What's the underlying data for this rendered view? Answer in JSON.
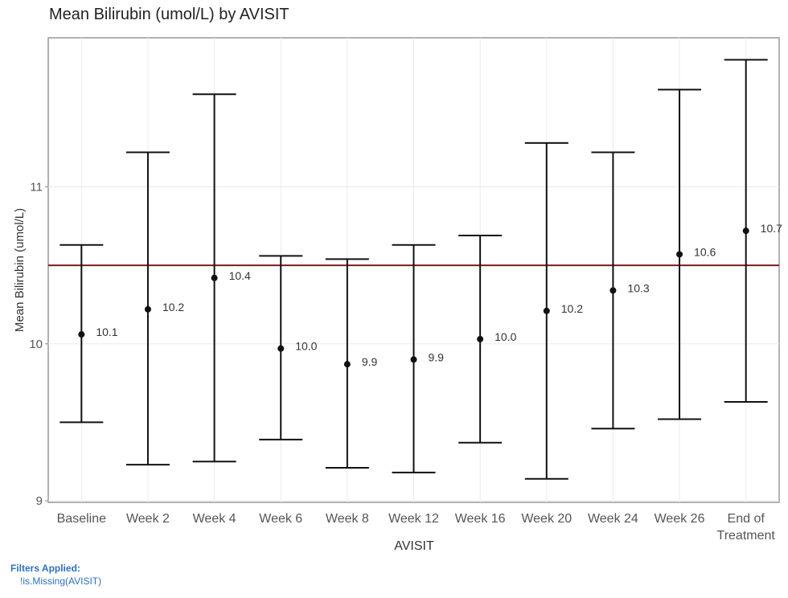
{
  "chart_data": {
    "type": "errorbar",
    "title": "Mean Bilirubin (umol/L) by AVISIT",
    "xlabel": "AVISIT",
    "ylabel": "Mean Bilirubin (umol/L)",
    "ylim": [
      8.99,
      11.95
    ],
    "yticks": [
      9,
      10,
      11
    ],
    "grid": true,
    "reference_line": {
      "y": 10.5,
      "color": "#7b1c1c"
    },
    "categories": [
      "Baseline",
      "Week 2",
      "Week 4",
      "Week 6",
      "Week 8",
      "Week 12",
      "Week 16",
      "Week 20",
      "Week 24",
      "Week 26",
      "End of Treatment"
    ],
    "mean": [
      10.06,
      10.22,
      10.42,
      9.97,
      9.87,
      9.9,
      10.03,
      10.21,
      10.34,
      10.57,
      10.72
    ],
    "lower": [
      9.5,
      9.23,
      9.25,
      9.39,
      9.21,
      9.18,
      9.37,
      9.14,
      9.46,
      9.52,
      9.63
    ],
    "upper": [
      10.63,
      11.22,
      11.59,
      10.56,
      10.54,
      10.63,
      10.69,
      11.28,
      11.22,
      11.62,
      11.81
    ],
    "labels": [
      "10.1",
      "10.2",
      "10.4",
      "10.0",
      "9.9",
      "9.9",
      "10.0",
      "10.2",
      "10.3",
      "10.6",
      "10.7"
    ]
  },
  "footer": {
    "filters_title": "Filters Applied:",
    "filters": [
      "!is.Missing(AVISIT)"
    ]
  }
}
